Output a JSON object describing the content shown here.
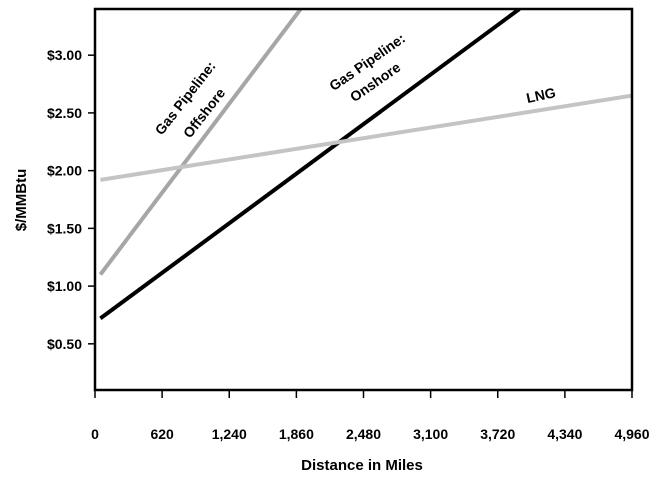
{
  "chart_data": {
    "type": "line",
    "title": "",
    "xlabel": "Distance in Miles",
    "ylabel": "$/MMBtu",
    "xlim": [
      0,
      4960
    ],
    "ylim": [
      0.1,
      3.4
    ],
    "x_ticks": [
      0,
      620,
      1240,
      1860,
      2480,
      3100,
      3720,
      4340,
      4960
    ],
    "x_tick_labels": [
      "0",
      "620",
      "1,240",
      "1,860",
      "2,480",
      "3,100",
      "3,720",
      "4,340",
      "4,960"
    ],
    "y_ticks": [
      0.5,
      1.0,
      1.5,
      2.0,
      2.5,
      3.0
    ],
    "y_tick_labels": [
      "$0.50",
      "$1.00",
      "$1.50",
      "$2.00",
      "$2.50",
      "$3.00"
    ],
    "grid": false,
    "series": [
      {
        "name": "Gas Pipeline: Offshore",
        "label_lines": [
          "Gas Pipeline:",
          "Offshore"
        ],
        "color": "#a6a6a6",
        "x": [
          50,
          1900
        ],
        "y": [
          1.1,
          3.4
        ]
      },
      {
        "name": "Gas Pipeline: Onshore",
        "label_lines": [
          "Gas Pipeline:",
          "Onshore"
        ],
        "color": "#000000",
        "x": [
          50,
          3920
        ],
        "y": [
          0.72,
          3.4
        ]
      },
      {
        "name": "LNG",
        "label_lines": [
          "LNG"
        ],
        "color": "#c4c4c4",
        "x": [
          50,
          4960
        ],
        "y": [
          1.92,
          2.65
        ]
      }
    ]
  }
}
